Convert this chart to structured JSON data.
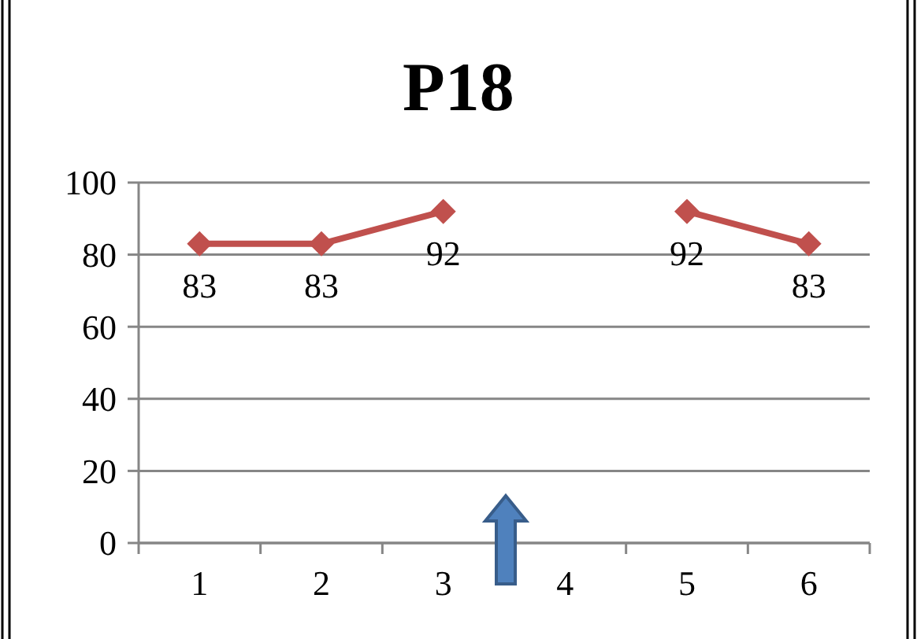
{
  "chart_data": {
    "type": "line",
    "title": "P18",
    "categories": [
      "1",
      "2",
      "3",
      "4",
      "5",
      "6"
    ],
    "series": [
      {
        "color": "#c0504d",
        "values": [
          83,
          83,
          92,
          null,
          92,
          83
        ]
      }
    ],
    "ylim": [
      0,
      100
    ],
    "yticks": [
      0,
      20,
      40,
      60,
      80,
      100
    ],
    "grid": "y",
    "marker": "diamond",
    "data_labels": true
  }
}
